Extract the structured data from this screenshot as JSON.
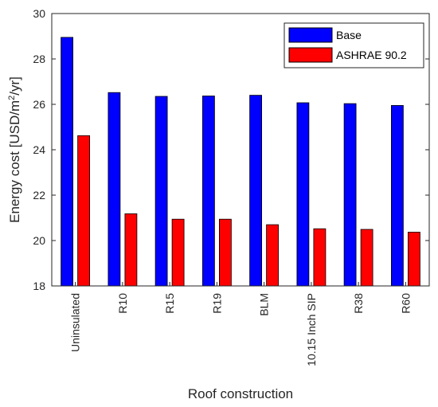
{
  "chart_data": {
    "type": "bar",
    "categories": [
      "Uninsulated",
      "R10",
      "R15",
      "R19",
      "BLM",
      "10.15 Inch SIP",
      "R38",
      "R60"
    ],
    "series": [
      {
        "name": "Base",
        "color": "#0000ff",
        "values": [
          28.95,
          26.52,
          26.35,
          26.37,
          26.4,
          26.07,
          26.03,
          25.95
        ]
      },
      {
        "name": "ASHRAE 90.2",
        "color": "#ff0000",
        "values": [
          24.62,
          21.18,
          20.94,
          20.94,
          20.7,
          20.52,
          20.49,
          20.37
        ]
      }
    ],
    "title": "",
    "xlabel": "Roof construction",
    "ylabel_prefix": "Energy cost [USD/m",
    "ylabel_sup1": "2",
    "ylabel_mid": "/yr]",
    "ylim": [
      18,
      30
    ],
    "yticks": [
      18,
      20,
      22,
      24,
      26,
      28,
      30
    ],
    "grid": false,
    "legend_position": "top-right"
  }
}
